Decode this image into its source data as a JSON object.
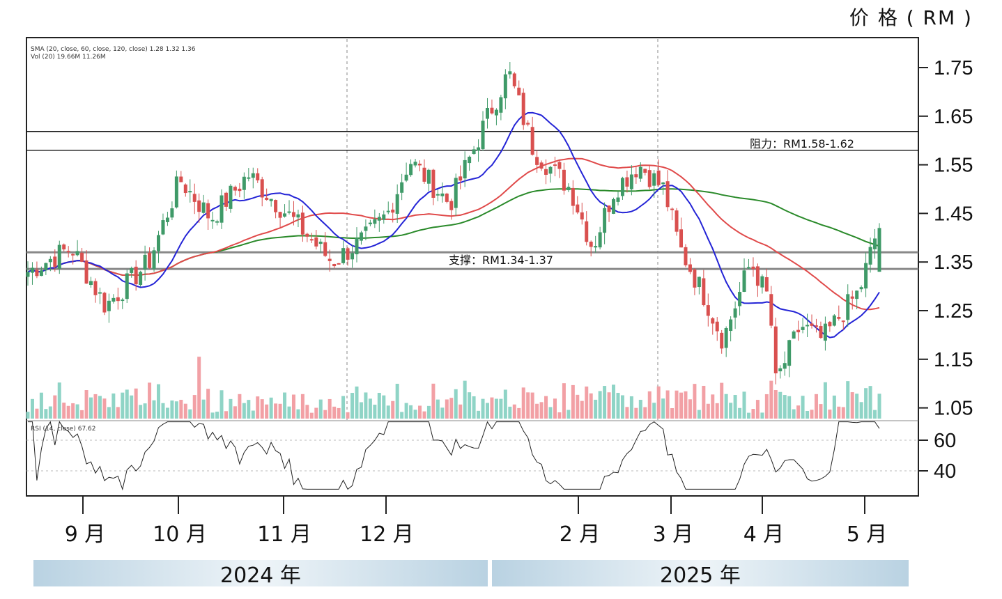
{
  "header": {
    "price_axis_title": "价 格 ( RM )"
  },
  "legend": {
    "sma": "SMA (20, close, 60, close, 120, close)  1.28  1.32  1.36",
    "vol": "Vol (20)  19.66M  11.26M",
    "rsi": "RSI (14, close)  67.62"
  },
  "annotations": {
    "resistance": "阻力：RM1.58-1.62",
    "support": "支撑：RM1.34-1.37"
  },
  "months": [
    "9 月",
    "10 月",
    "11 月",
    "12 月",
    "2 月",
    "3 月",
    "4 月",
    "5 月"
  ],
  "years": [
    "2024 年",
    "2025 年"
  ],
  "colors": {
    "up": "#3f9a68",
    "down": "#d9504f",
    "sma20": "#2424d6",
    "sma60": "#e04a4a",
    "sma120": "#2a8a2a"
  },
  "chart_data": {
    "type": "candlestick",
    "price_ticks": [
      "1.75",
      "1.65",
      "1.55",
      "1.45",
      "1.35",
      "1.25",
      "1.15",
      "1.05"
    ],
    "rsi_ticks": [
      "60",
      "40"
    ],
    "ylim": [
      1.0,
      1.81
    ],
    "resistance_zone": [
      1.58,
      1.62
    ],
    "support_zone": [
      1.34,
      1.37
    ],
    "sma20_last": 1.28,
    "sma60_last": 1.32,
    "sma120_last": 1.36,
    "rsi_last": 67.62,
    "price_anchors": [
      {
        "date": "2024-08-12",
        "close": 1.33
      },
      {
        "date": "2024-08-26",
        "close": 1.38
      },
      {
        "date": "2024-09-06",
        "close": 1.26
      },
      {
        "date": "2024-09-20",
        "close": 1.35
      },
      {
        "date": "2024-09-30",
        "close": 1.52
      },
      {
        "date": "2024-10-10",
        "close": 1.44
      },
      {
        "date": "2024-10-22",
        "close": 1.53
      },
      {
        "date": "2024-11-05",
        "close": 1.44
      },
      {
        "date": "2024-11-18",
        "close": 1.35
      },
      {
        "date": "2024-11-29",
        "close": 1.4
      },
      {
        "date": "2024-12-06",
        "close": 1.45
      },
      {
        "date": "2024-12-13",
        "close": 1.56
      },
      {
        "date": "2024-12-26",
        "close": 1.47
      },
      {
        "date": "2025-01-08",
        "close": 1.66
      },
      {
        "date": "2025-01-14",
        "close": 1.74
      },
      {
        "date": "2025-01-22",
        "close": 1.58
      },
      {
        "date": "2025-02-03",
        "close": 1.5
      },
      {
        "date": "2025-02-10",
        "close": 1.38
      },
      {
        "date": "2025-02-17",
        "close": 1.5
      },
      {
        "date": "2025-02-25",
        "close": 1.55
      },
      {
        "date": "2025-03-05",
        "close": 1.5
      },
      {
        "date": "2025-03-10",
        "close": 1.38
      },
      {
        "date": "2025-03-18",
        "close": 1.28
      },
      {
        "date": "2025-03-24",
        "close": 1.19
      },
      {
        "date": "2025-04-02",
        "close": 1.35
      },
      {
        "date": "2025-04-08",
        "close": 1.27
      },
      {
        "date": "2025-04-10",
        "close": 1.1
      },
      {
        "date": "2025-04-18",
        "close": 1.22
      },
      {
        "date": "2025-04-25",
        "close": 1.19
      },
      {
        "date": "2025-05-02",
        "close": 1.25
      },
      {
        "date": "2025-05-07",
        "close": 1.29
      },
      {
        "date": "2025-05-13",
        "close": 1.42
      }
    ]
  }
}
